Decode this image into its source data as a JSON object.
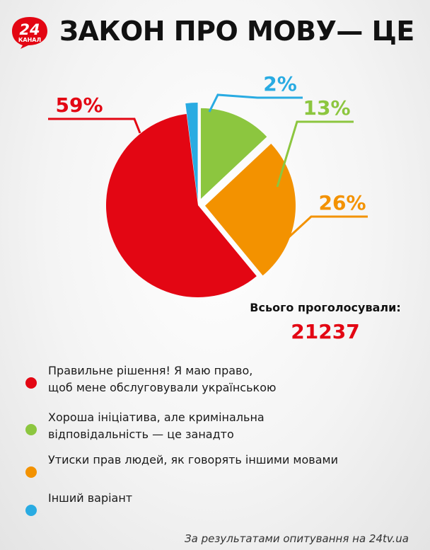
{
  "logo": {
    "number": "24",
    "text": "КАНАЛ",
    "color": "#e30613"
  },
  "title": "ЗАКОН ПРО МОВУ— ЦЕ",
  "chart_data": {
    "type": "pie",
    "values": [
      59,
      13,
      26,
      2
    ],
    "labels": [
      "59%",
      "13%",
      "26%",
      "2%"
    ],
    "colors": [
      "#e30613",
      "#8cc63f",
      "#f39200",
      "#29abe2"
    ],
    "categories": [
      "Правильне рішення! Я маю право,\nщоб мене обслуговували українською",
      "Хороша ініціатива, але кримінальна\nвідповідальність — це занадто",
      "Утиски прав людей, як говорять іншими мовами",
      "Інший варіант"
    ]
  },
  "total": {
    "label": "Всього проголосували:",
    "value": "21237"
  },
  "legend": [
    {
      "text": "Правильне рішення! Я маю право,\nщоб мене обслуговували українською",
      "color": "#e30613"
    },
    {
      "text": "Хороша ініціатива, але кримінальна\nвідповідальність — це занадто",
      "color": "#8cc63f"
    },
    {
      "text": "Утиски прав людей, як говорять іншими мовами",
      "color": "#f39200"
    },
    {
      "text": "Інший варіант",
      "color": "#29abe2"
    }
  ],
  "source": "За результатами опитування на 24tv.ua"
}
